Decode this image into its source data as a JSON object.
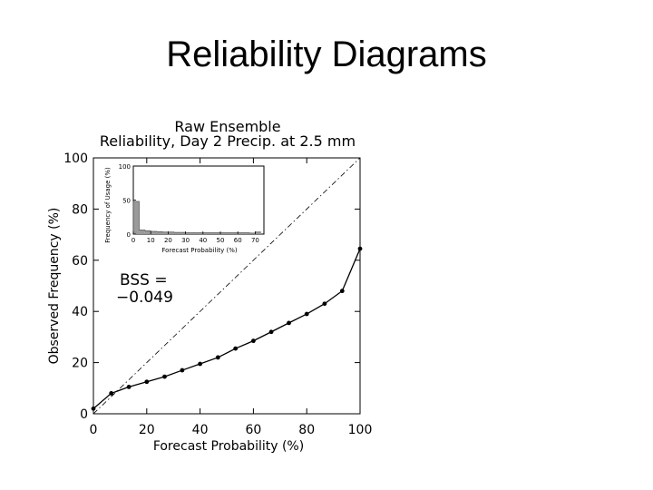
{
  "slide": {
    "title": "Reliability Diagrams"
  },
  "chart_data": [
    {
      "type": "line",
      "title": "Raw Ensemble",
      "subtitle": "Reliability, Day 2 Precip. at 2.5 mm",
      "xlabel": "Forecast Probability (%)",
      "ylabel": "Observed Frequency (%)",
      "xlim": [
        0,
        100
      ],
      "ylim": [
        0,
        100
      ],
      "xticks": [
        "0",
        "20",
        "40",
        "60",
        "80",
        "100"
      ],
      "yticks": [
        "0",
        "20",
        "40",
        "60",
        "80",
        "100"
      ],
      "grid": false,
      "annotation": {
        "line1": "BSS =",
        "line2": "−0.049"
      },
      "reference_line": {
        "style": "dash-dot",
        "from": [
          0,
          0
        ],
        "to": [
          100,
          100
        ]
      },
      "series": [
        {
          "x": [
            0,
            6.7,
            13.3,
            20,
            26.7,
            33.3,
            40,
            46.7,
            53.3,
            60,
            66.7,
            73.3,
            80,
            86.7,
            93.3,
            100
          ],
          "y": [
            2,
            8,
            10.5,
            12.5,
            14.5,
            17,
            19.5,
            22,
            25.5,
            28.5,
            32,
            35.5,
            39,
            43,
            48,
            64.5
          ]
        }
      ]
    },
    {
      "type": "bar",
      "xlabel": "Forecast Probability (%)",
      "ylabel": "Frequency of Usage (%)",
      "xlim": [
        0,
        75
      ],
      "ylim": [
        0,
        100
      ],
      "xticks": [
        "0",
        "10",
        "20",
        "30",
        "40",
        "50",
        "60",
        "70"
      ],
      "yticks": [
        "0",
        "50",
        "100"
      ],
      "bar_color": "#9a9a9a",
      "x": [
        0,
        3.33,
        6.67,
        10,
        13.33,
        16.67,
        20,
        23.33,
        26.67,
        30,
        33.33,
        36.67,
        40,
        43.33,
        46.67,
        50,
        53.33,
        56.67,
        60,
        63.33,
        66.67,
        70
      ],
      "values": [
        48,
        6,
        5,
        4,
        3.5,
        3,
        3,
        2.5,
        2.5,
        2,
        2,
        2,
        2,
        2,
        2,
        2,
        2,
        2,
        2,
        2,
        1.5,
        3
      ]
    }
  ]
}
